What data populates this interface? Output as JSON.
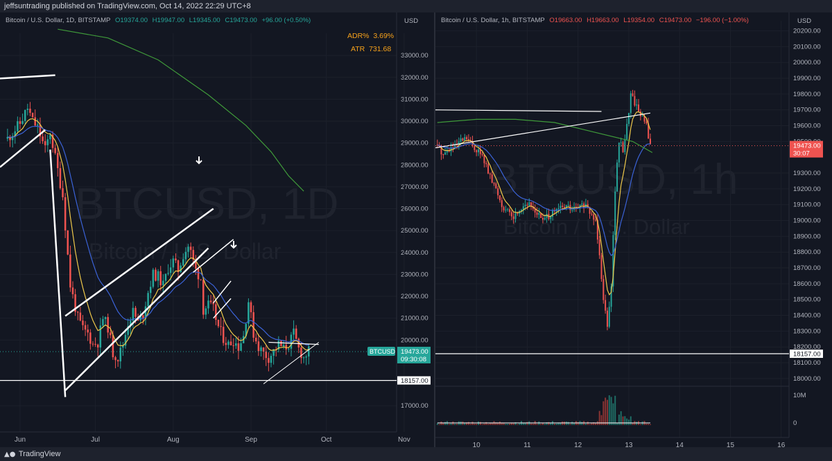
{
  "header": {
    "published": "jeffsuntrading published on TradingView.com, Oct 14, 2022 22:29 UTC+8"
  },
  "footer": {
    "brand": "TradingView",
    "brand_icon": "tradingview-logo-icon"
  },
  "colors": {
    "bg": "#131722",
    "up": "#26a69a",
    "down": "#ef5350",
    "grid": "#1e222d",
    "ema_fast": "#f0c94a",
    "ema_mid": "#3b63d8",
    "ema_slow": "#3f9a3a",
    "price_tag": "#26a69a",
    "price_tag_right": "#ef5350"
  },
  "chart_data": [
    {
      "type": "candlestick",
      "symbol": "Bitcoin / U.S. Dollar, 1D, BITSTAMP",
      "watermark": "BTCUSD, 1D",
      "watermark_sub": "Bitcoin / U.S. Dollar",
      "ohlc": {
        "open": "O19374.00",
        "high": "H19947.00",
        "low": "L19345.00",
        "close": "C19473.00",
        "change": "+96.00 (+0.50%)"
      },
      "indicators": [
        {
          "label": "ADR%",
          "value": "3.69%"
        },
        {
          "label": "ATR",
          "value": "731.68"
        }
      ],
      "currency": "USD",
      "y_ticks": [
        "33000.00",
        "32000.00",
        "31000.00",
        "30000.00",
        "29000.00",
        "28000.00",
        "27000.00",
        "26000.00",
        "25000.00",
        "24000.00",
        "23000.00",
        "22000.00",
        "21000.00",
        "20000.00",
        "17000.00"
      ],
      "y_range": [
        16500,
        33700
      ],
      "x_ticks": [
        "Jun",
        "Jul",
        "Aug",
        "Sep",
        "Oct",
        "Nov"
      ],
      "last_price": {
        "symbol": "BTCUSD",
        "price": "19473.00",
        "countdown": "09:30:08"
      },
      "support_level": {
        "price": "18157.00"
      },
      "series_path": [
        [
          0,
          29200
        ],
        [
          5,
          29900
        ],
        [
          8,
          30600
        ],
        [
          10,
          30000
        ],
        [
          12,
          29700
        ],
        [
          15,
          28700
        ],
        [
          17,
          29500
        ],
        [
          22,
          26600
        ],
        [
          25,
          22500
        ],
        [
          28,
          21000
        ],
        [
          30,
          20500
        ],
        [
          32,
          20300
        ],
        [
          34,
          19800
        ],
        [
          36,
          19900
        ],
        [
          38,
          21000
        ],
        [
          40,
          20600
        ],
        [
          42,
          19400
        ],
        [
          44,
          19200
        ],
        [
          46,
          19800
        ],
        [
          48,
          20800
        ],
        [
          50,
          21300
        ],
        [
          52,
          20800
        ],
        [
          54,
          21200
        ],
        [
          56,
          22200
        ],
        [
          58,
          23000
        ],
        [
          60,
          22900
        ],
        [
          62,
          22500
        ],
        [
          64,
          23300
        ],
        [
          66,
          23600
        ],
        [
          68,
          23200
        ],
        [
          70,
          23900
        ],
        [
          72,
          24300
        ],
        [
          73,
          24000
        ],
        [
          75,
          23200
        ],
        [
          77,
          22800
        ],
        [
          78,
          21400
        ],
        [
          80,
          21600
        ],
        [
          82,
          21400
        ],
        [
          84,
          20600
        ],
        [
          86,
          20100
        ],
        [
          88,
          19800
        ],
        [
          90,
          20000
        ],
        [
          92,
          19700
        ],
        [
          94,
          20200
        ],
        [
          96,
          21800
        ],
        [
          98,
          20300
        ],
        [
          100,
          19700
        ],
        [
          102,
          19400
        ],
        [
          104,
          19200
        ],
        [
          106,
          19500
        ],
        [
          108,
          19800
        ],
        [
          110,
          19600
        ],
        [
          112,
          19800
        ],
        [
          114,
          20300
        ],
        [
          116,
          19600
        ],
        [
          118,
          19200
        ],
        [
          120,
          19473
        ]
      ],
      "x_index_range": [
        -3,
        155
      ]
    },
    {
      "type": "candlestick",
      "symbol": "Bitcoin / U.S. Dollar, 1h, BITSTAMP",
      "watermark": "BTCUSD, 1h",
      "watermark_sub": "Bitcoin / U.S. Dollar",
      "ohlc": {
        "open": "O19663.00",
        "high": "H19663.00",
        "low": "L19354.00",
        "close": "C19473.00",
        "change": "−196.00 (−1.00%)"
      },
      "currency": "USD",
      "y_ticks": [
        "20200.00",
        "20100.00",
        "20000.00",
        "19900.00",
        "19800.00",
        "19700.00",
        "19600.00",
        "19500.00",
        "19300.00",
        "19200.00",
        "19100.00",
        "19000.00",
        "18900.00",
        "18800.00",
        "18700.00",
        "18600.00",
        "18500.00",
        "18400.00",
        "18300.00",
        "18200.00",
        "18100.00",
        "18000.00"
      ],
      "y_range": [
        17960,
        20220
      ],
      "x_ticks": [
        "10",
        "11",
        "12",
        "13",
        "14",
        "15",
        "16"
      ],
      "last_price": {
        "price": "19473.00",
        "countdown": "30:07"
      },
      "support_level": {
        "price": "18157.00"
      },
      "volume": {
        "label": "10M",
        "zero": "0"
      },
      "series_path": [
        [
          0,
          19480
        ],
        [
          3,
          19420
        ],
        [
          6,
          19450
        ],
        [
          9,
          19460
        ],
        [
          12,
          19500
        ],
        [
          15,
          19520
        ],
        [
          18,
          19470
        ],
        [
          21,
          19440
        ],
        [
          24,
          19380
        ],
        [
          27,
          19270
        ],
        [
          30,
          19200
        ],
        [
          33,
          19100
        ],
        [
          36,
          19050
        ],
        [
          39,
          19020
        ],
        [
          42,
          19070
        ],
        [
          45,
          19110
        ],
        [
          48,
          19090
        ],
        [
          51,
          19050
        ],
        [
          54,
          19000
        ],
        [
          57,
          19030
        ],
        [
          60,
          19050
        ],
        [
          63,
          19080
        ],
        [
          66,
          19090
        ],
        [
          69,
          19070
        ],
        [
          72,
          19080
        ],
        [
          75,
          19100
        ],
        [
          78,
          19050
        ],
        [
          81,
          19000
        ],
        [
          83,
          18800
        ],
        [
          85,
          18500
        ],
        [
          87,
          18350
        ],
        [
          89,
          18600
        ],
        [
          91,
          19200
        ],
        [
          93,
          19500
        ],
        [
          95,
          19450
        ],
        [
          97,
          19600
        ],
        [
          99,
          19800
        ],
        [
          101,
          19750
        ],
        [
          103,
          19700
        ],
        [
          105,
          19650
        ],
        [
          107,
          19600
        ],
        [
          109,
          19473
        ]
      ],
      "x_index_range": [
        -1,
        180
      ]
    }
  ]
}
